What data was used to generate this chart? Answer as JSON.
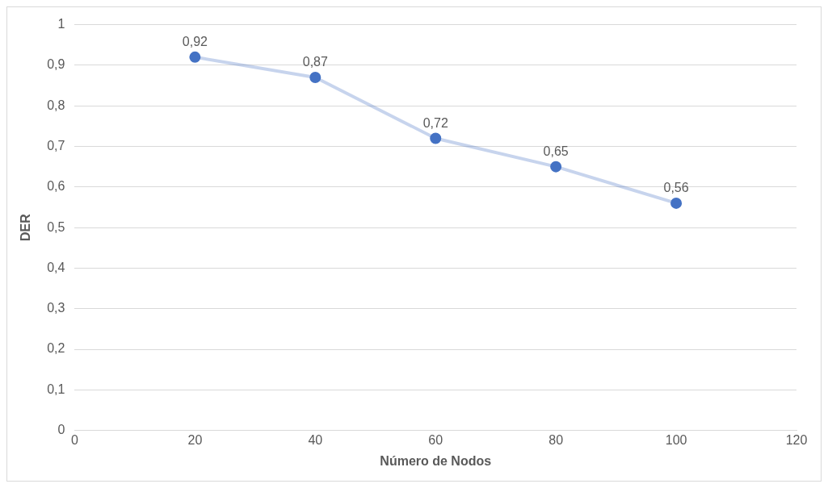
{
  "chart_data": {
    "type": "line",
    "xlabel": "Número de Nodos",
    "ylabel": "DER",
    "x": [
      20,
      40,
      60,
      80,
      100
    ],
    "series": [
      {
        "color": "#4472c4",
        "values": [
          0.92,
          0.87,
          0.72,
          0.65,
          0.56
        ],
        "value_labels": [
          "0,92",
          "0,87",
          "0,72",
          "0,65",
          "0,56"
        ]
      }
    ],
    "xlim": [
      0,
      120
    ],
    "xticks": [
      0,
      20,
      40,
      60,
      80,
      100,
      120
    ],
    "ylim": [
      0,
      1
    ],
    "yticks": [
      0,
      {
        "value": 0.1,
        "label": "0,1"
      },
      {
        "value": 0.2,
        "label": "0,2"
      },
      {
        "value": 0.3,
        "label": "0,3"
      },
      {
        "value": 0.4,
        "label": "0,4"
      },
      {
        "value": 0.5,
        "label": "0,5"
      },
      {
        "value": 0.6,
        "label": "0,6"
      },
      {
        "value": 0.7,
        "label": "0,7"
      },
      {
        "value": 0.8,
        "label": "0,8"
      },
      {
        "value": 0.9,
        "label": "0,9"
      },
      1
    ],
    "grid": "y",
    "legend": false,
    "marker": "circle",
    "line_style": "solid"
  }
}
